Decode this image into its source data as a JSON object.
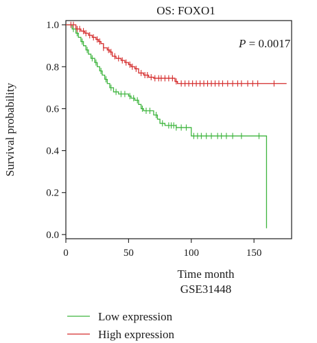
{
  "chart_data": {
    "type": "line",
    "title": "OS: FOXO1",
    "xlabel": "Time month",
    "xlabel2": "GSE31448",
    "ylabel": "Survival probability",
    "annotation": {
      "label": "P",
      "text": " = 0.0017"
    },
    "xlim": [
      0,
      180
    ],
    "ylim": [
      -0.02,
      1.02
    ],
    "x_ticks": [
      0,
      50,
      100,
      150
    ],
    "y_ticks": [
      0.0,
      0.2,
      0.4,
      0.6,
      0.8,
      1.0
    ],
    "x_tick_labels": [
      "0",
      "50",
      "100",
      "150"
    ],
    "y_tick_labels": [
      "0.0",
      "0.2",
      "0.4",
      "0.6",
      "0.8",
      "1.0"
    ],
    "legend_placement": "bottom",
    "series": [
      {
        "name": "Low expression",
        "color": "#3cb43c",
        "steps": [
          [
            0,
            1.0
          ],
          [
            5,
            0.98
          ],
          [
            8,
            0.96
          ],
          [
            10,
            0.94
          ],
          [
            12,
            0.92
          ],
          [
            14,
            0.9
          ],
          [
            16,
            0.88
          ],
          [
            18,
            0.86
          ],
          [
            20,
            0.84
          ],
          [
            23,
            0.82
          ],
          [
            25,
            0.8
          ],
          [
            27,
            0.78
          ],
          [
            29,
            0.76
          ],
          [
            31,
            0.74
          ],
          [
            33,
            0.72
          ],
          [
            35,
            0.7
          ],
          [
            38,
            0.68
          ],
          [
            42,
            0.67
          ],
          [
            50,
            0.66
          ],
          [
            52,
            0.65
          ],
          [
            55,
            0.64
          ],
          [
            58,
            0.62
          ],
          [
            60,
            0.6
          ],
          [
            62,
            0.59
          ],
          [
            70,
            0.57
          ],
          [
            73,
            0.55
          ],
          [
            75,
            0.53
          ],
          [
            79,
            0.52
          ],
          [
            88,
            0.51
          ],
          [
            100,
            0.47
          ],
          [
            158,
            0.47
          ],
          [
            160,
            0.03
          ]
        ],
        "censor_x": [
          6,
          9,
          13,
          17,
          21,
          24,
          28,
          32,
          36,
          40,
          44,
          47,
          51,
          54,
          57,
          61,
          64,
          67,
          72,
          77,
          82,
          84,
          86,
          88,
          92,
          96,
          102,
          105,
          108,
          112,
          116,
          121,
          124,
          128,
          133,
          140,
          154
        ]
      },
      {
        "name": "High expression",
        "color": "#d42a2a",
        "steps": [
          [
            0,
            1.0
          ],
          [
            8,
            0.98
          ],
          [
            12,
            0.97
          ],
          [
            15,
            0.96
          ],
          [
            18,
            0.95
          ],
          [
            21,
            0.94
          ],
          [
            24,
            0.93
          ],
          [
            26,
            0.92
          ],
          [
            28,
            0.91
          ],
          [
            30,
            0.89
          ],
          [
            33,
            0.88
          ],
          [
            35,
            0.87
          ],
          [
            37,
            0.85
          ],
          [
            40,
            0.84
          ],
          [
            44,
            0.83
          ],
          [
            47,
            0.82
          ],
          [
            50,
            0.81
          ],
          [
            52,
            0.8
          ],
          [
            55,
            0.79
          ],
          [
            58,
            0.77
          ],
          [
            62,
            0.76
          ],
          [
            66,
            0.75
          ],
          [
            70,
            0.745
          ],
          [
            87,
            0.73
          ],
          [
            89,
            0.72
          ],
          [
            176,
            0.72
          ]
        ],
        "censor_x": [
          4,
          6,
          9,
          11,
          14,
          16,
          19,
          22,
          25,
          27,
          30,
          34,
          36,
          39,
          42,
          45,
          48,
          51,
          53,
          56,
          60,
          63,
          65,
          68,
          71,
          74,
          76,
          79,
          82,
          85,
          88,
          92,
          95,
          98,
          101,
          104,
          107,
          110,
          113,
          116,
          119,
          122,
          125,
          129,
          133,
          137,
          140,
          145,
          149,
          153,
          166
        ]
      }
    ]
  }
}
